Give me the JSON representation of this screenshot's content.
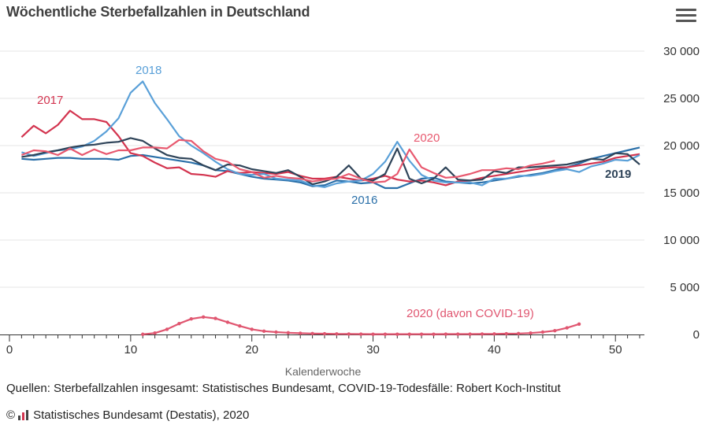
{
  "header": {
    "title": "Wöchentliche Sterbefallzahlen in Deutschland",
    "menu_icon": "hamburger-menu-icon"
  },
  "footer": {
    "source": "Quellen: Sterbefallzahlen insgesamt: Statistisches Bundesamt, COVID-19-Todesfälle: Robert Koch-Institut",
    "copyright_symbol": "©",
    "logo_icon": "destatis-logo-icon",
    "copyright": "Statistisches Bundesamt (Destatis), 2020"
  },
  "colors": {
    "s2016": "#2a6fa8",
    "s2017": "#d3344f",
    "s2018": "#5aa0d8",
    "s2019": "#2f4459",
    "s2020": "#e8596f",
    "covid": "#e05670",
    "grid": "#e6e6e6",
    "axis_text": "#333333",
    "axis_title": "#666666"
  },
  "chart_data": {
    "type": "line",
    "title": "Wöchentliche Sterbefallzahlen in Deutschland",
    "xlabel": "Kalenderwoche",
    "ylabel": "",
    "xlim": [
      0,
      52
    ],
    "ylim": [
      0,
      30000
    ],
    "x_ticks": [
      0,
      10,
      20,
      30,
      40,
      50
    ],
    "y_ticks": [
      0,
      5000,
      10000,
      15000,
      20000,
      25000,
      30000
    ],
    "y_tick_labels": [
      "0",
      "5 000",
      "10 000",
      "15 000",
      "20 000",
      "25 000",
      "30 000"
    ],
    "grid": true,
    "series": [
      {
        "name": "2016",
        "label": "2016",
        "color_key": "s2016",
        "x_start": 1,
        "values": [
          18600,
          18500,
          18600,
          18700,
          18700,
          18600,
          18600,
          18600,
          18500,
          18900,
          19000,
          18800,
          18600,
          18400,
          18200,
          17900,
          17400,
          17300,
          17000,
          16700,
          16500,
          16400,
          16300,
          16100,
          15700,
          15800,
          16300,
          16200,
          16000,
          16100,
          15500,
          15500,
          16000,
          16500,
          16600,
          16200,
          16100,
          16000,
          16100,
          16300,
          16500,
          16700,
          16900,
          17100,
          17400,
          17700,
          18100,
          18600,
          18900,
          19200,
          19500,
          19800
        ]
      },
      {
        "name": "2017",
        "label": "2017",
        "color_key": "s2017",
        "x_start": 1,
        "values": [
          20900,
          22100,
          21300,
          22200,
          23700,
          22800,
          22800,
          22500,
          21000,
          19200,
          18900,
          18200,
          17600,
          17700,
          17000,
          16900,
          16700,
          17300,
          17100,
          17200,
          17100,
          17000,
          17200,
          16800,
          16500,
          16500,
          16700,
          16500,
          16300,
          16500,
          16800,
          16400,
          16200,
          16300,
          16100,
          15800,
          16200,
          16300,
          16600,
          16800,
          17000,
          17200,
          17400,
          17600,
          17700,
          17700,
          17900,
          18100,
          18300,
          18700,
          18900,
          19100
        ]
      },
      {
        "name": "2018",
        "label": "2018",
        "color_key": "s2018",
        "x_start": 1,
        "values": [
          19300,
          18900,
          19200,
          19500,
          19600,
          19900,
          20500,
          21500,
          22900,
          25600,
          26800,
          24500,
          22800,
          21000,
          20000,
          19200,
          18300,
          17500,
          17000,
          16900,
          17000,
          16500,
          16400,
          16300,
          15800,
          15600,
          16000,
          16200,
          16300,
          17000,
          18300,
          20400,
          18400,
          16900,
          16300,
          16100,
          16100,
          16100,
          15800,
          16500,
          16500,
          16800,
          16800,
          17000,
          17300,
          17500,
          17200,
          17800,
          18100,
          18500,
          18400,
          19000
        ]
      },
      {
        "name": "2019",
        "label": "2019",
        "color_key": "s2019",
        "x_start": 1,
        "values": [
          18800,
          19000,
          19300,
          19500,
          19800,
          20000,
          20100,
          20300,
          20400,
          20800,
          20500,
          19700,
          19000,
          18700,
          18600,
          17900,
          17400,
          18000,
          17900,
          17500,
          17300,
          17100,
          17400,
          16700,
          15900,
          16200,
          16700,
          17900,
          16500,
          16300,
          17000,
          19700,
          16500,
          16000,
          16500,
          17700,
          16400,
          16300,
          16400,
          17300,
          17100,
          17700,
          17700,
          17800,
          17900,
          18000,
          18300,
          18600,
          18500,
          19200,
          19100,
          18000
        ]
      },
      {
        "name": "2020",
        "label": "2020",
        "color_key": "s2020",
        "x_start": 1,
        "values": [
          19000,
          19500,
          19400,
          19000,
          19700,
          19000,
          19600,
          19100,
          19500,
          19500,
          19800,
          19800,
          19700,
          20600,
          20500,
          19400,
          18600,
          18300,
          17500,
          17200,
          16600,
          16800,
          16600,
          16500,
          16200,
          16400,
          16500,
          17000,
          16500,
          16100,
          16200,
          17000,
          19600,
          17700,
          17100,
          16600,
          16700,
          17000,
          17400,
          17400,
          17600,
          17500,
          17900,
          18100,
          18400
        ]
      },
      {
        "name": "2020 (davon COVID-19)",
        "label": "2020 (davon COVID-19)",
        "color_key": "covid",
        "x_start": 11,
        "markers": true,
        "values": [
          20,
          150,
          550,
          1150,
          1650,
          1850,
          1700,
          1300,
          900,
          550,
          350,
          250,
          180,
          130,
          100,
          80,
          60,
          50,
          40,
          30,
          30,
          30,
          30,
          30,
          30,
          40,
          40,
          40,
          50,
          60,
          80,
          100,
          150,
          250,
          400,
          700,
          1100
        ]
      }
    ]
  }
}
